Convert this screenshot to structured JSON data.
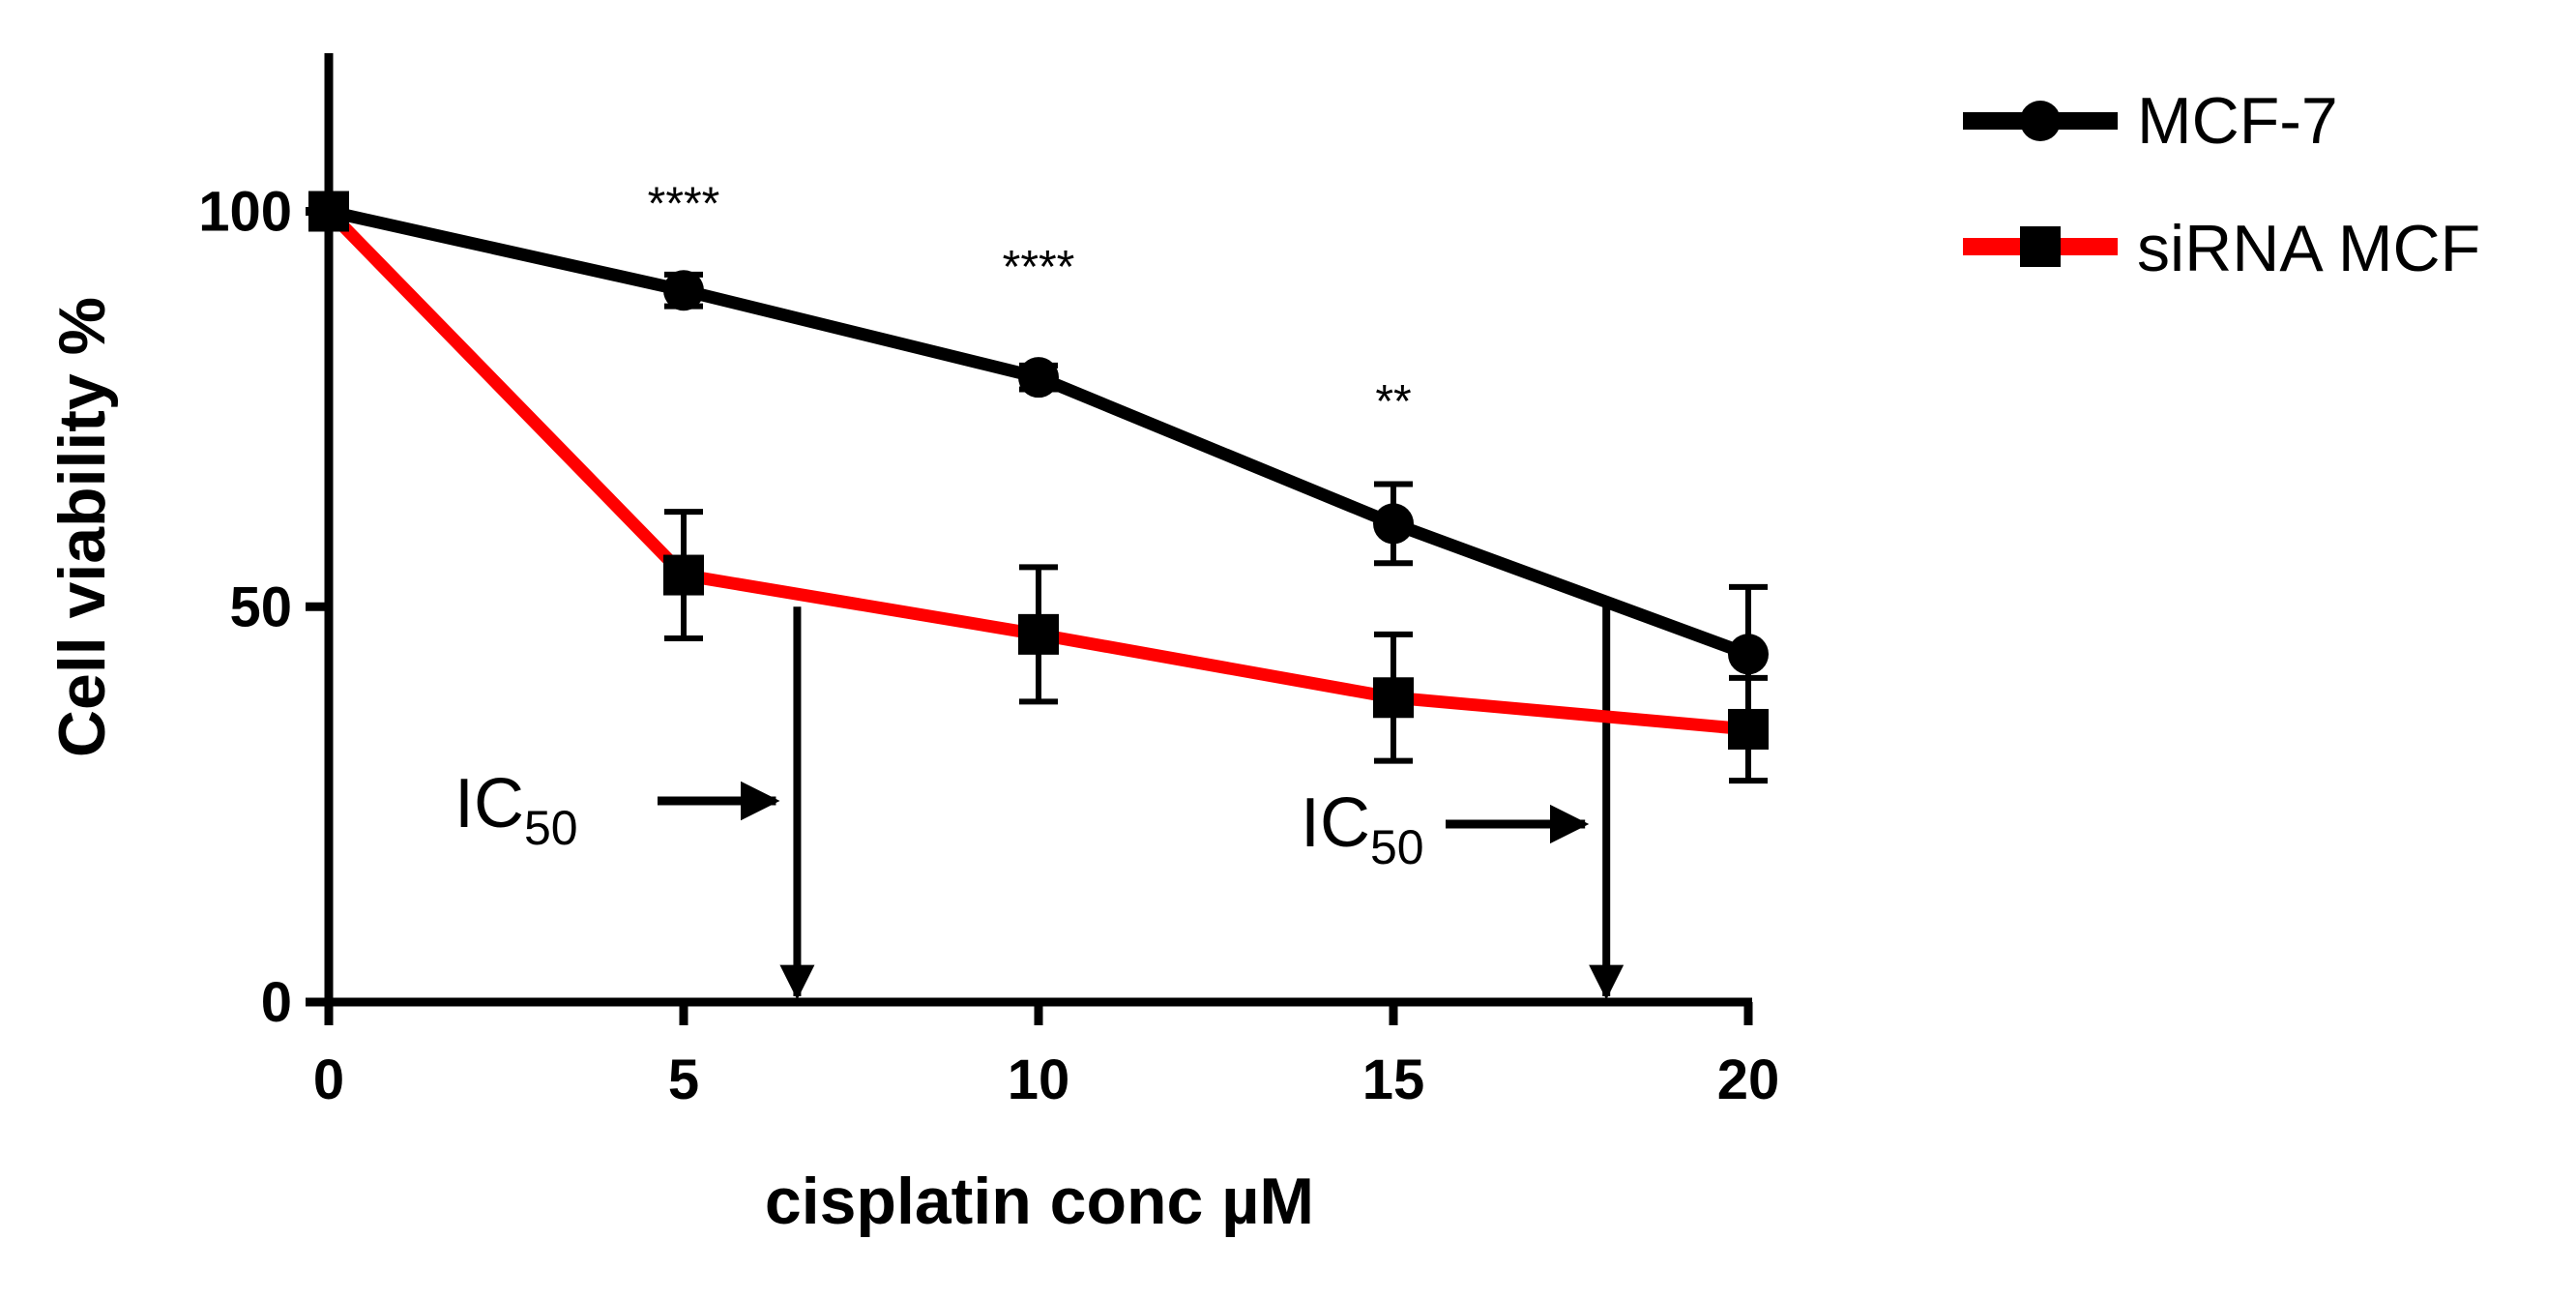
{
  "chart_data": {
    "type": "line",
    "title": "",
    "xlabel": "cisplatin conc µM",
    "ylabel": "Cell viability %",
    "xlim": [
      0,
      20
    ],
    "ylim": [
      0,
      120
    ],
    "x_ticks": [
      0,
      5,
      10,
      15,
      20
    ],
    "x_tick_labels": [
      "0",
      "5",
      "10",
      "15",
      "20"
    ],
    "y_ticks": [
      0,
      50,
      100
    ],
    "y_tick_labels": [
      "0",
      "50",
      "100"
    ],
    "legend_position": "top-right",
    "grid": false,
    "series": [
      {
        "name": "MCF-7",
        "color": "#000000",
        "marker": "circle",
        "x": [
          0,
          5,
          10,
          15,
          20
        ],
        "y": [
          100,
          90,
          79,
          60.5,
          44
        ],
        "error": [
          0,
          2,
          1.5,
          5,
          8.5
        ]
      },
      {
        "name": "siRNA MCF",
        "color": "#ff0000",
        "marker": "square",
        "x": [
          0,
          5,
          10,
          15,
          20
        ],
        "y": [
          100,
          54,
          46.5,
          38.5,
          34.5
        ],
        "error": [
          0,
          8,
          8.5,
          8,
          6.5
        ]
      }
    ],
    "significance": [
      {
        "x": 5,
        "y": 99,
        "label": "****"
      },
      {
        "x": 10,
        "y": 91,
        "label": "****"
      },
      {
        "x": 15,
        "y": 74,
        "label": "**"
      }
    ],
    "annotations": [
      {
        "text": "IC",
        "subscript": "50",
        "arrow_x": 6.6,
        "arrow_from_y": 50,
        "arrow_to_y": 0
      },
      {
        "text": "IC",
        "subscript": "50",
        "arrow_x": 18,
        "arrow_from_y": 50,
        "arrow_to_y": 0
      }
    ]
  }
}
